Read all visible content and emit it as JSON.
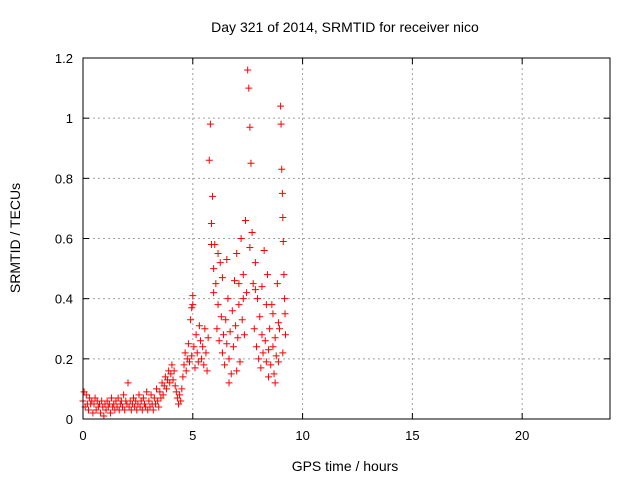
{
  "chart_data": {
    "type": "scatter",
    "title": "Day 321 of 2014, SRMTID for receiver nico",
    "xlabel": "GPS time / hours",
    "ylabel": "SRMTID / TECUs",
    "xlim": [
      0,
      24
    ],
    "ylim": [
      0,
      1.2
    ],
    "xticks": [
      0,
      5,
      10,
      15,
      20
    ],
    "xtick_labels": [
      "0",
      "5",
      "10",
      "15",
      "20"
    ],
    "yticks": [
      0,
      0.2,
      0.4,
      0.6,
      0.8,
      1,
      1.2
    ],
    "ytick_labels": [
      "0",
      "0.2",
      "0.4",
      "0.6",
      "0.8",
      "1",
      "1.2"
    ],
    "grid": true,
    "marker": "+",
    "color": "#ff0000",
    "series": [
      {
        "name": "SRMTID",
        "points": [
          [
            0.0,
            0.06
          ],
          [
            0.05,
            0.09
          ],
          [
            0.1,
            0.04
          ],
          [
            0.15,
            0.08
          ],
          [
            0.2,
            0.05
          ],
          [
            0.25,
            0.03
          ],
          [
            0.3,
            0.07
          ],
          [
            0.35,
            0.05
          ],
          [
            0.4,
            0.06
          ],
          [
            0.45,
            0.02
          ],
          [
            0.5,
            0.05
          ],
          [
            0.55,
            0.07
          ],
          [
            0.6,
            0.03
          ],
          [
            0.65,
            0.06
          ],
          [
            0.7,
            0.04
          ],
          [
            0.75,
            0.05
          ],
          [
            0.8,
            0.02
          ],
          [
            0.85,
            0.06
          ],
          [
            0.9,
            0.04
          ],
          [
            0.95,
            0.01
          ],
          [
            1.0,
            0.05
          ],
          [
            1.05,
            0.03
          ],
          [
            1.1,
            0.06
          ],
          [
            1.15,
            0.04
          ],
          [
            1.2,
            0.05
          ],
          [
            1.25,
            0.02
          ],
          [
            1.3,
            0.07
          ],
          [
            1.35,
            0.04
          ],
          [
            1.4,
            0.05
          ],
          [
            1.45,
            0.03
          ],
          [
            1.5,
            0.06
          ],
          [
            1.55,
            0.04
          ],
          [
            1.6,
            0.07
          ],
          [
            1.65,
            0.03
          ],
          [
            1.7,
            0.05
          ],
          [
            1.75,
            0.06
          ],
          [
            1.8,
            0.04
          ],
          [
            1.85,
            0.08
          ],
          [
            1.9,
            0.03
          ],
          [
            1.95,
            0.06
          ],
          [
            2.0,
            0.05
          ],
          [
            2.05,
            0.12
          ],
          [
            2.1,
            0.04
          ],
          [
            2.15,
            0.06
          ],
          [
            2.2,
            0.03
          ],
          [
            2.25,
            0.05
          ],
          [
            2.3,
            0.07
          ],
          [
            2.35,
            0.04
          ],
          [
            2.4,
            0.06
          ],
          [
            2.45,
            0.03
          ],
          [
            2.5,
            0.05
          ],
          [
            2.55,
            0.08
          ],
          [
            2.6,
            0.04
          ],
          [
            2.65,
            0.06
          ],
          [
            2.7,
            0.03
          ],
          [
            2.75,
            0.07
          ],
          [
            2.8,
            0.05
          ],
          [
            2.85,
            0.04
          ],
          [
            2.9,
            0.09
          ],
          [
            2.95,
            0.03
          ],
          [
            3.0,
            0.06
          ],
          [
            3.05,
            0.04
          ],
          [
            3.1,
            0.08
          ],
          [
            3.15,
            0.05
          ],
          [
            3.2,
            0.03
          ],
          [
            3.25,
            0.07
          ],
          [
            3.3,
            0.05
          ],
          [
            3.35,
            0.1
          ],
          [
            3.4,
            0.06
          ],
          [
            3.45,
            0.04
          ],
          [
            3.5,
            0.09
          ],
          [
            3.55,
            0.07
          ],
          [
            3.6,
            0.12
          ],
          [
            3.65,
            0.08
          ],
          [
            3.7,
            0.11
          ],
          [
            3.75,
            0.14
          ],
          [
            3.8,
            0.1
          ],
          [
            3.85,
            0.13
          ],
          [
            3.9,
            0.16
          ],
          [
            3.95,
            0.12
          ],
          [
            4.0,
            0.15
          ],
          [
            4.05,
            0.18
          ],
          [
            4.1,
            0.13
          ],
          [
            4.15,
            0.16
          ],
          [
            4.2,
            0.11
          ],
          [
            4.25,
            0.09
          ],
          [
            4.3,
            0.07
          ],
          [
            4.35,
            0.05
          ],
          [
            4.4,
            0.08
          ],
          [
            4.45,
            0.06
          ],
          [
            4.5,
            0.1
          ],
          [
            4.55,
            0.14
          ],
          [
            4.6,
            0.18
          ],
          [
            4.65,
            0.22
          ],
          [
            4.7,
            0.16
          ],
          [
            4.75,
            0.2
          ],
          [
            4.8,
            0.25
          ],
          [
            4.85,
            0.19
          ],
          [
            4.9,
            0.33
          ],
          [
            4.95,
            0.21
          ],
          [
            5.0,
            0.38
          ],
          [
            5.05,
            0.24
          ],
          [
            5.1,
            0.17
          ],
          [
            5.15,
            0.28
          ],
          [
            5.2,
            0.22
          ],
          [
            5.25,
            0.19
          ],
          [
            5.3,
            0.31
          ],
          [
            5.35,
            0.26
          ],
          [
            5.4,
            0.2
          ],
          [
            5.45,
            0.24
          ],
          [
            5.5,
            0.18
          ],
          [
            5.55,
            0.3
          ],
          [
            5.6,
            0.22
          ],
          [
            5.65,
            0.16
          ],
          [
            5.7,
            0.27
          ],
          [
            5.75,
            0.86
          ],
          [
            5.8,
            0.98
          ],
          [
            5.85,
            0.65
          ],
          [
            5.9,
            0.74
          ],
          [
            5.95,
            0.5
          ],
          [
            6.0,
            0.58
          ],
          [
            6.05,
            0.45
          ],
          [
            6.1,
            0.3
          ],
          [
            6.15,
            0.38
          ],
          [
            6.2,
            0.26
          ],
          [
            6.25,
            0.52
          ],
          [
            6.3,
            0.34
          ],
          [
            6.35,
            0.22
          ],
          [
            6.4,
            0.28
          ],
          [
            6.45,
            0.18
          ],
          [
            6.5,
            0.33
          ],
          [
            6.55,
            0.25
          ],
          [
            6.6,
            0.4
          ],
          [
            6.65,
            0.2
          ],
          [
            6.7,
            0.29
          ],
          [
            6.75,
            0.15
          ],
          [
            6.8,
            0.36
          ],
          [
            6.85,
            0.24
          ],
          [
            6.9,
            0.46
          ],
          [
            6.95,
            0.31
          ],
          [
            7.0,
            0.55
          ],
          [
            7.05,
            0.27
          ],
          [
            7.1,
            0.38
          ],
          [
            7.15,
            0.19
          ],
          [
            7.2,
            0.6
          ],
          [
            7.25,
            0.33
          ],
          [
            7.3,
            0.48
          ],
          [
            7.35,
            0.28
          ],
          [
            7.4,
            0.66
          ],
          [
            7.45,
            0.42
          ],
          [
            7.5,
            1.16
          ],
          [
            7.55,
            1.1
          ],
          [
            7.6,
            0.97
          ],
          [
            7.65,
            0.85
          ],
          [
            7.7,
            0.62
          ],
          [
            7.75,
            0.45
          ],
          [
            7.8,
            0.3
          ],
          [
            7.85,
            0.52
          ],
          [
            7.9,
            0.24
          ],
          [
            7.95,
            0.4
          ],
          [
            8.0,
            0.2
          ],
          [
            8.05,
            0.34
          ],
          [
            8.1,
            0.17
          ],
          [
            8.15,
            0.28
          ],
          [
            8.2,
            0.22
          ],
          [
            8.25,
            0.56
          ],
          [
            8.3,
            0.26
          ],
          [
            8.35,
            0.19
          ],
          [
            8.4,
            0.48
          ],
          [
            8.45,
            0.23
          ],
          [
            8.5,
            0.3
          ],
          [
            8.55,
            0.18
          ],
          [
            8.6,
            0.38
          ],
          [
            8.65,
            0.24
          ],
          [
            8.7,
            0.15
          ],
          [
            8.75,
            0.27
          ],
          [
            8.8,
            0.21
          ],
          [
            8.85,
            0.45
          ],
          [
            8.9,
            0.19
          ],
          [
            8.95,
            0.3
          ],
          [
            9.0,
            1.04
          ],
          [
            9.02,
            0.98
          ],
          [
            9.05,
            0.83
          ],
          [
            9.08,
            0.75
          ],
          [
            9.1,
            0.67
          ],
          [
            9.12,
            0.59
          ],
          [
            9.15,
            0.48
          ],
          [
            9.18,
            0.4
          ],
          [
            9.2,
            0.35
          ],
          [
            9.22,
            0.28
          ],
          [
            5.0,
            0.41
          ],
          [
            4.95,
            0.37
          ],
          [
            5.85,
            0.58
          ],
          [
            5.95,
            0.42
          ],
          [
            6.15,
            0.55
          ],
          [
            6.35,
            0.47
          ],
          [
            6.55,
            0.53
          ],
          [
            7.1,
            0.45
          ],
          [
            7.3,
            0.4
          ],
          [
            7.6,
            0.57
          ],
          [
            7.85,
            0.43
          ],
          [
            8.15,
            0.44
          ],
          [
            8.35,
            0.38
          ],
          [
            8.65,
            0.35
          ],
          [
            8.9,
            0.32
          ],
          [
            6.65,
            0.12
          ],
          [
            7.0,
            0.16
          ],
          [
            8.45,
            0.14
          ],
          [
            8.75,
            0.12
          ],
          [
            9.1,
            0.22
          ]
        ]
      }
    ]
  }
}
